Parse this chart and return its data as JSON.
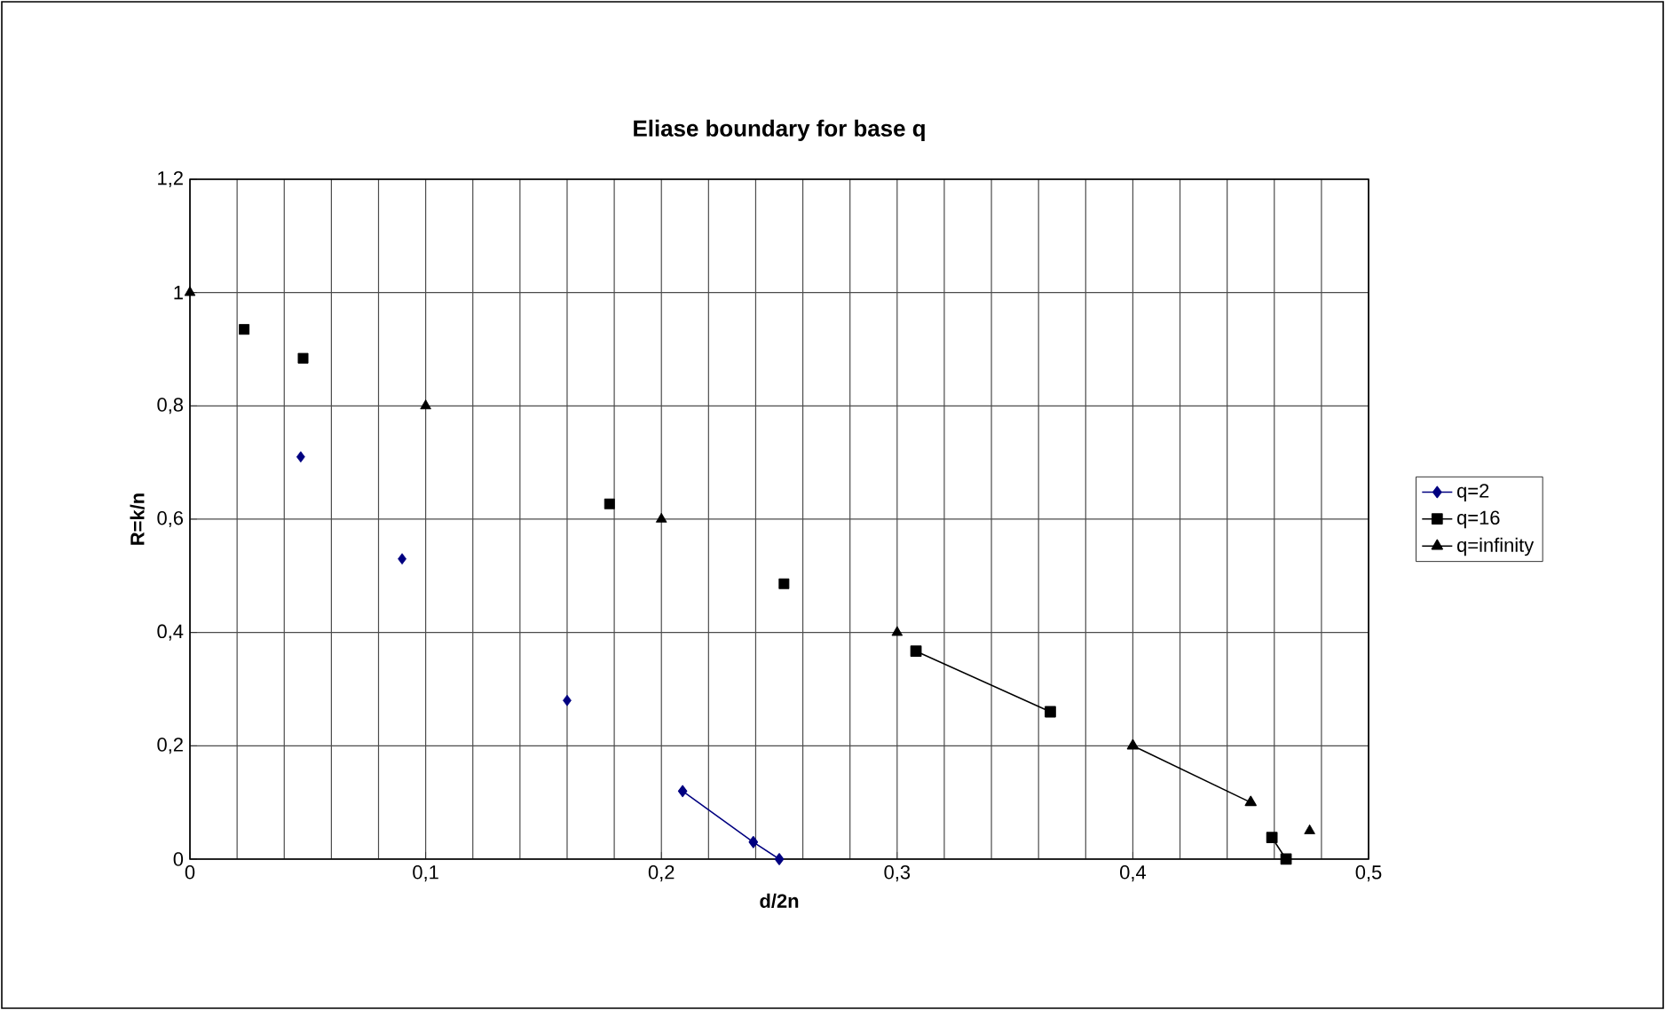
{
  "chart_data": {
    "type": "line",
    "title": "Eliase boundary for base q",
    "xlabel": "d/2n",
    "ylabel": "R=k/n",
    "xlim": [
      0,
      0.5
    ],
    "ylim": [
      0,
      1.2
    ],
    "xticks": [
      0,
      {
        "value": 0.1,
        "label": "0,1"
      },
      {
        "value": 0.2,
        "label": "0,2"
      },
      {
        "value": 0.3,
        "label": "0,3"
      },
      {
        "value": 0.4,
        "label": "0,4"
      },
      {
        "value": 0.5,
        "label": "0,5"
      }
    ],
    "yticks": [
      0,
      {
        "value": 0.2,
        "label": "0,2"
      },
      {
        "value": 0.4,
        "label": "0,4"
      },
      {
        "value": 0.6,
        "label": "0,6"
      },
      {
        "value": 0.8,
        "label": "0,8"
      },
      1,
      {
        "value": 1.2,
        "label": "1,2"
      }
    ],
    "grid": true,
    "legend": "right",
    "series": [
      {
        "name": "q=2",
        "color": "#000080",
        "marker": "diamond",
        "x": [
          0.209,
          0.239,
          0.25
        ],
        "values": [
          0.12,
          0.03,
          0.0
        ]
      },
      {
        "name": "q=16",
        "color": "#000000",
        "marker": "square",
        "x": [
          0.308,
          0.365,
          null,
          0.459,
          0.465
        ],
        "values": [
          0.367,
          0.26,
          null,
          0.038,
          0.0
        ]
      },
      {
        "name": "q=infinity",
        "color": "#000000",
        "marker": "triangle",
        "x": [
          0.4,
          0.45
        ],
        "values": [
          0.2,
          0.1
        ]
      },
      {
        "color": "#000080",
        "marker": "diamond",
        "type": "scatter",
        "x": [
          0.047,
          0.09,
          0.16
        ],
        "values": [
          0.71,
          0.53,
          0.28
        ]
      },
      {
        "color": "#000000",
        "marker": "square",
        "type": "scatter",
        "x": [
          0.023,
          0.048,
          0.178,
          0.252
        ],
        "values": [
          0.935,
          0.884,
          0.627,
          0.486
        ]
      },
      {
        "color": "#000000",
        "marker": "triangle",
        "type": "scatter",
        "x": [
          0,
          0.1,
          0.2,
          0.3,
          0.475
        ],
        "values": [
          1.0,
          0.8,
          0.6,
          0.4,
          0.05
        ]
      }
    ]
  }
}
